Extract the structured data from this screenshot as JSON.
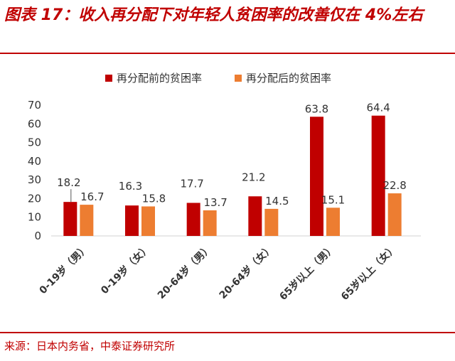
{
  "header": {
    "title": "图表 17：收入再分配下对年轻人贫困率的改善仅在 4%左右"
  },
  "footer": {
    "source": "来源：日本内务省，中泰证券研究所"
  },
  "chart_data": {
    "type": "bar",
    "categories": [
      "0-19岁（男）",
      "0-19岁（女）",
      "20-64岁（男）",
      "20-64岁（女）",
      "65岁以上（男）",
      "65岁以上（女）"
    ],
    "series": [
      {
        "name": "再分配前的贫困率",
        "values": [
          18.2,
          16.3,
          17.7,
          21.2,
          63.8,
          64.4
        ],
        "labels": [
          "18.2",
          "16.3",
          "17.7",
          "21.2",
          "63.8",
          "64.4"
        ],
        "color": "#c00000"
      },
      {
        "name": "再分配后的贫困率",
        "values": [
          16.7,
          15.8,
          13.7,
          14.5,
          15.1,
          22.8
        ],
        "labels": [
          "16.7",
          "15.8",
          "13.7",
          "14.5",
          "15.1",
          "22.8"
        ],
        "color": "#ed7d31"
      }
    ],
    "ylim": [
      0,
      70
    ],
    "yticks": [
      "0",
      "10",
      "20",
      "30",
      "40",
      "50",
      "60",
      "70"
    ],
    "grid": false,
    "legend": "top-center",
    "xlabel": "",
    "ylabel": ""
  }
}
